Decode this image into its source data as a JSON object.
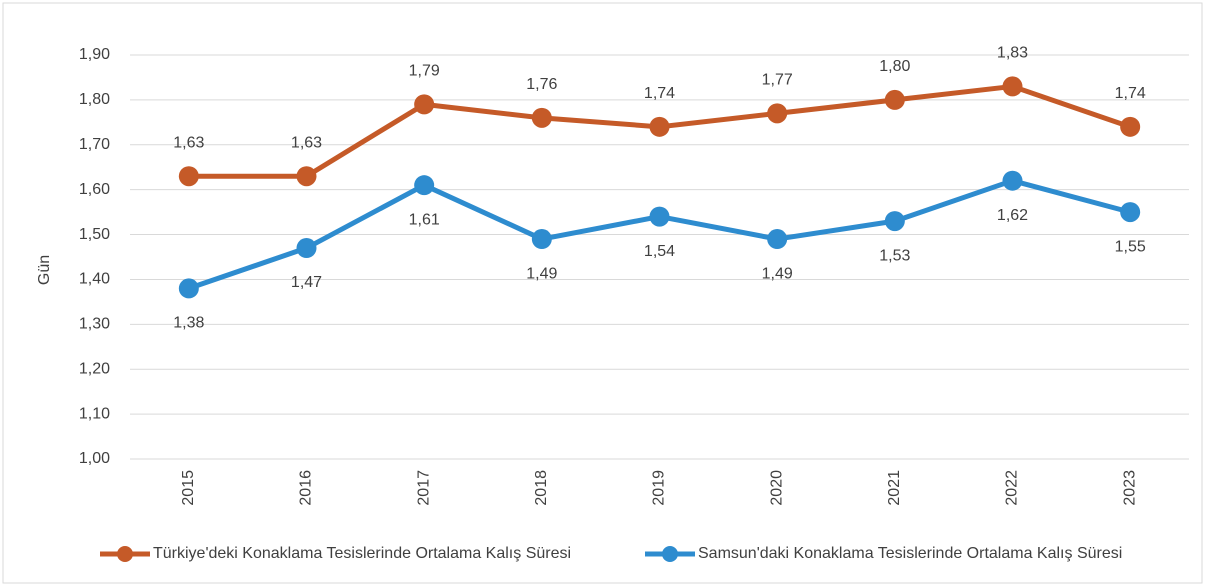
{
  "chart_data": {
    "type": "line",
    "y_label": "Gün",
    "categories": [
      "2015",
      "2016",
      "2017",
      "2018",
      "2019",
      "2020",
      "2021",
      "2022",
      "2023"
    ],
    "series": [
      {
        "name": "Türkiye'deki Konaklama Tesislerinde Ortalama Kalış Süresi",
        "color": "#c55a28",
        "values": [
          1.63,
          1.63,
          1.79,
          1.76,
          1.74,
          1.77,
          1.8,
          1.83,
          1.74
        ],
        "value_labels": [
          "1,63",
          "1,63",
          "1,79",
          "1,76",
          "1,74",
          "1,77",
          "1,80",
          "1,83",
          "1,74"
        ]
      },
      {
        "name": "Samsun'daki Konaklama Tesislerinde Ortalama Kalış Süresi",
        "color": "#2e8ccf",
        "values": [
          1.38,
          1.47,
          1.61,
          1.49,
          1.54,
          1.49,
          1.53,
          1.62,
          1.55
        ],
        "value_labels": [
          "1,38",
          "1,47",
          "1,61",
          "1,49",
          "1,54",
          "1,49",
          "1,53",
          "1,62",
          "1,55"
        ]
      }
    ],
    "ylim": [
      1.0,
      1.9
    ],
    "yticks": [
      {
        "value": 1.0,
        "label": "1,00"
      },
      {
        "value": 1.1,
        "label": "1,10"
      },
      {
        "value": 1.2,
        "label": "1,20"
      },
      {
        "value": 1.3,
        "label": "1,30"
      },
      {
        "value": 1.4,
        "label": "1,40"
      },
      {
        "value": 1.5,
        "label": "1,50"
      },
      {
        "value": 1.6,
        "label": "1,60"
      },
      {
        "value": 1.7,
        "label": "1,70"
      },
      {
        "value": 1.8,
        "label": "1,80"
      },
      {
        "value": 1.9,
        "label": "1,90"
      }
    ],
    "grid": true,
    "legend": "bottom"
  }
}
